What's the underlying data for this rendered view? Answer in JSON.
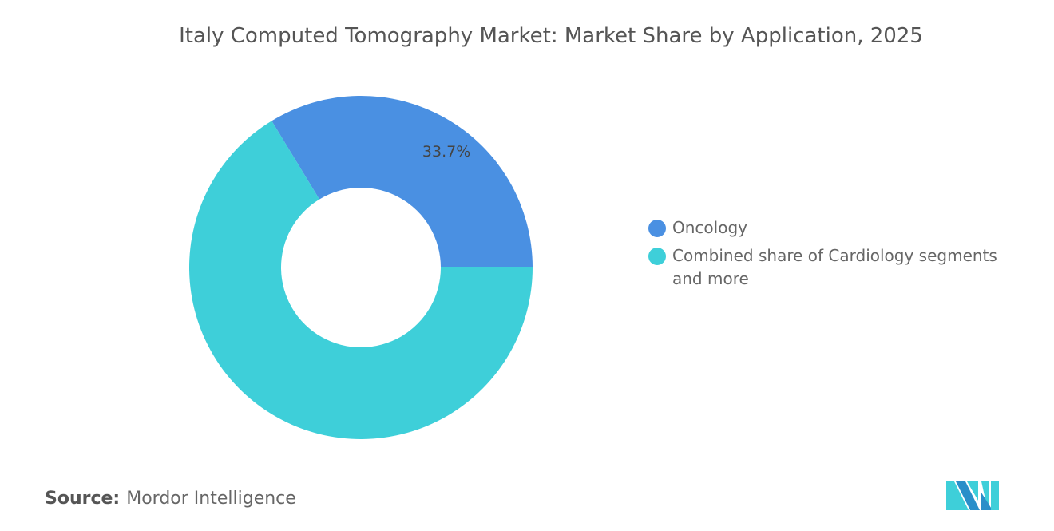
{
  "chart_data": {
    "type": "pie",
    "donut": true,
    "title": "Italy Computed Tomography Market: Market Share by Application, 2025",
    "categories": [
      "Oncology",
      "Combined share of Cardiology segments and more"
    ],
    "values": [
      33.7,
      66.3
    ],
    "data_labels": [
      "33.7%",
      ""
    ],
    "colors": [
      "#4a90e2",
      "#3ecfd9"
    ],
    "legend_position": "right"
  },
  "source": {
    "label": "Source:",
    "value": "Mordor Intelligence"
  },
  "logo": {
    "text": "Mordor Intelligence",
    "colors": [
      "#2a8fc9",
      "#3ecfd9"
    ]
  }
}
